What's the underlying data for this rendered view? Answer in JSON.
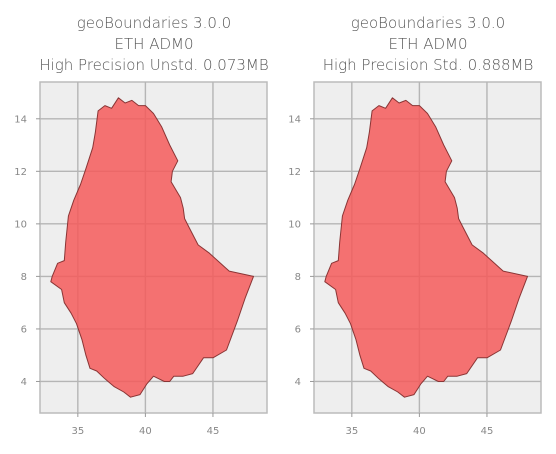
{
  "chart_data": [
    {
      "type": "area",
      "title": [
        "geoBoundaries 3.0.0",
        "ETH ADM0",
        "High Precision Unstd. 0.073MB"
      ],
      "xlabel": "",
      "ylabel": "",
      "xlim": [
        32.2,
        49.0
      ],
      "ylim": [
        2.8,
        15.4
      ],
      "xticks": [
        35,
        40,
        45
      ],
      "yticks": [
        4,
        6,
        8,
        10,
        12,
        14
      ],
      "grid": true,
      "series": [
        {
          "fill": "#f45a5a",
          "stroke": "#8a3535",
          "points": [
            [
              36.5,
              14.3
            ],
            [
              37.0,
              14.5
            ],
            [
              37.5,
              14.4
            ],
            [
              38.0,
              14.8
            ],
            [
              38.5,
              14.6
            ],
            [
              39.0,
              14.7
            ],
            [
              39.5,
              14.5
            ],
            [
              40.0,
              14.5
            ],
            [
              40.6,
              14.2
            ],
            [
              41.2,
              13.7
            ],
            [
              41.8,
              13.0
            ],
            [
              42.4,
              12.4
            ],
            [
              42.0,
              12.0
            ],
            [
              41.9,
              11.6
            ],
            [
              42.6,
              11.0
            ],
            [
              42.8,
              10.6
            ],
            [
              42.9,
              10.2
            ],
            [
              43.2,
              9.9
            ],
            [
              43.9,
              9.2
            ],
            [
              44.7,
              8.9
            ],
            [
              46.2,
              8.2
            ],
            [
              48.0,
              8.0
            ],
            [
              47.4,
              7.2
            ],
            [
              46.8,
              6.3
            ],
            [
              46.0,
              5.2
            ],
            [
              45.0,
              4.9
            ],
            [
              44.3,
              4.9
            ],
            [
              43.5,
              4.3
            ],
            [
              42.8,
              4.2
            ],
            [
              42.1,
              4.2
            ],
            [
              41.8,
              4.0
            ],
            [
              41.4,
              4.0
            ],
            [
              41.0,
              4.1
            ],
            [
              40.6,
              4.2
            ],
            [
              40.1,
              3.9
            ],
            [
              39.6,
              3.5
            ],
            [
              38.9,
              3.4
            ],
            [
              38.4,
              3.6
            ],
            [
              37.7,
              3.8
            ],
            [
              37.0,
              4.1
            ],
            [
              36.4,
              4.4
            ],
            [
              35.9,
              4.5
            ],
            [
              35.6,
              5.0
            ],
            [
              35.3,
              5.6
            ],
            [
              34.9,
              6.2
            ],
            [
              34.5,
              6.6
            ],
            [
              34.0,
              7.0
            ],
            [
              33.8,
              7.5
            ],
            [
              33.0,
              7.8
            ],
            [
              33.1,
              8.0
            ],
            [
              33.5,
              8.5
            ],
            [
              34.0,
              8.6
            ],
            [
              34.1,
              9.3
            ],
            [
              34.3,
              10.3
            ],
            [
              34.7,
              10.9
            ],
            [
              35.2,
              11.5
            ],
            [
              35.6,
              12.1
            ],
            [
              36.1,
              12.9
            ],
            [
              36.3,
              13.5
            ],
            [
              36.5,
              14.3
            ]
          ]
        }
      ]
    },
    {
      "type": "area",
      "title": [
        "geoBoundaries 3.0.0",
        "ETH ADM0",
        "High Precision Std. 0.888MB"
      ],
      "xlabel": "",
      "ylabel": "",
      "xlim": [
        32.2,
        49.0
      ],
      "ylim": [
        2.8,
        15.4
      ],
      "xticks": [
        35,
        40,
        45
      ],
      "yticks": [
        4,
        6,
        8,
        10,
        12,
        14
      ],
      "grid": true,
      "series": [
        {
          "fill": "#f45a5a",
          "stroke": "#8a3535",
          "points": [
            [
              36.5,
              14.3
            ],
            [
              37.0,
              14.5
            ],
            [
              37.5,
              14.4
            ],
            [
              38.0,
              14.8
            ],
            [
              38.5,
              14.6
            ],
            [
              39.0,
              14.7
            ],
            [
              39.5,
              14.5
            ],
            [
              40.0,
              14.5
            ],
            [
              40.6,
              14.2
            ],
            [
              41.2,
              13.7
            ],
            [
              41.8,
              13.0
            ],
            [
              42.4,
              12.4
            ],
            [
              42.0,
              12.0
            ],
            [
              41.9,
              11.6
            ],
            [
              42.6,
              11.0
            ],
            [
              42.8,
              10.6
            ],
            [
              42.9,
              10.2
            ],
            [
              43.2,
              9.9
            ],
            [
              43.9,
              9.2
            ],
            [
              44.7,
              8.9
            ],
            [
              46.2,
              8.2
            ],
            [
              48.0,
              8.0
            ],
            [
              47.4,
              7.2
            ],
            [
              46.8,
              6.3
            ],
            [
              46.0,
              5.2
            ],
            [
              45.0,
              4.9
            ],
            [
              44.3,
              4.9
            ],
            [
              43.5,
              4.3
            ],
            [
              42.8,
              4.2
            ],
            [
              42.1,
              4.2
            ],
            [
              41.8,
              4.0
            ],
            [
              41.4,
              4.0
            ],
            [
              41.0,
              4.1
            ],
            [
              40.6,
              4.2
            ],
            [
              40.1,
              3.9
            ],
            [
              39.6,
              3.5
            ],
            [
              38.9,
              3.4
            ],
            [
              38.4,
              3.6
            ],
            [
              37.7,
              3.8
            ],
            [
              37.0,
              4.1
            ],
            [
              36.4,
              4.4
            ],
            [
              35.9,
              4.5
            ],
            [
              35.6,
              5.0
            ],
            [
              35.3,
              5.6
            ],
            [
              34.9,
              6.2
            ],
            [
              34.5,
              6.6
            ],
            [
              34.0,
              7.0
            ],
            [
              33.8,
              7.5
            ],
            [
              33.0,
              7.8
            ],
            [
              33.1,
              8.0
            ],
            [
              33.5,
              8.5
            ],
            [
              34.0,
              8.6
            ],
            [
              34.1,
              9.3
            ],
            [
              34.3,
              10.3
            ],
            [
              34.7,
              10.9
            ],
            [
              35.2,
              11.5
            ],
            [
              35.6,
              12.1
            ],
            [
              36.1,
              12.9
            ],
            [
              36.3,
              13.5
            ],
            [
              36.5,
              14.3
            ]
          ]
        }
      ]
    }
  ]
}
